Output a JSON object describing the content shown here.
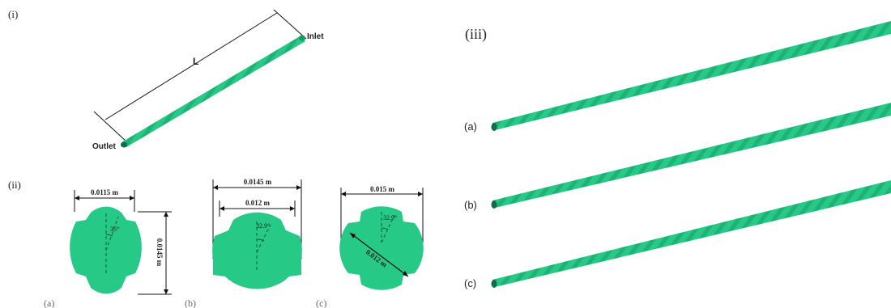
{
  "panels": {
    "i": {
      "label": "(i)",
      "length_label": "L",
      "inlet_label": "Inlet",
      "outlet_label": "Outlet"
    },
    "ii": {
      "label": "(ii)",
      "a": {
        "label": "(a)",
        "width": "0.0115 m",
        "height": "0.0145 m",
        "angle": "35°"
      },
      "b": {
        "label": "(b)",
        "outer_width": "0.0145 m",
        "inner_width": "0.012 m",
        "angle": "32.9°"
      },
      "c": {
        "label": "(c)",
        "width": "0.015 m",
        "diagonal": "0.012 m",
        "angle": "32.9°"
      }
    },
    "iii": {
      "label": "(iii)",
      "rows": [
        {
          "label": "(a)"
        },
        {
          "label": "(b)"
        },
        {
          "label": "(c)"
        }
      ]
    }
  },
  "colors": {
    "tube": "#27c987",
    "tube_dark": "#169a64"
  }
}
